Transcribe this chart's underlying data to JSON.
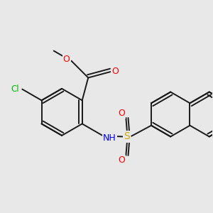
{
  "bg_color": "#e8e8e8",
  "bond_color": "#1a1a1a",
  "bond_width": 1.4,
  "atom_colors": {
    "O": "#ff0000",
    "N": "#0000ff",
    "Cl": "#00bb00",
    "S": "#ccaa00",
    "C": "#1a1a1a"
  },
  "font_size": 8.5,
  "figsize": [
    3.0,
    3.0
  ],
  "dpi": 100
}
